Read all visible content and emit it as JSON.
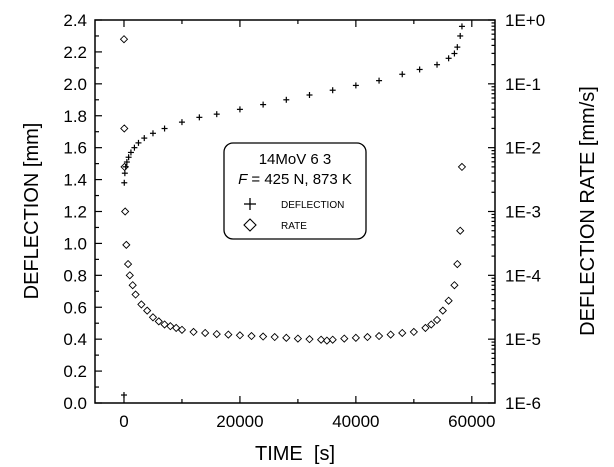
{
  "chart_data": {
    "type": "scatter",
    "xlabel": "TIME  [s]",
    "ylabel_left": "DEFLECTION [mm]",
    "ylabel_right": "DEFLECTION RATE [mm/s]",
    "xlim": [
      -5000,
      64000
    ],
    "ylim_left": [
      0.0,
      2.4
    ],
    "ylim_right": [
      1e-06,
      1
    ],
    "right_axis_scale": "log",
    "x_ticks": [
      "0",
      "20000",
      "40000",
      "60000"
    ],
    "y_ticks_left": [
      "0.0",
      "0.2",
      "0.4",
      "0.6",
      "0.8",
      "1.0",
      "1.2",
      "1.4",
      "1.6",
      "1.8",
      "2.0",
      "2.2",
      "2.4"
    ],
    "y_ticks_right": [
      "1E-6",
      "1E-5",
      "1E-4",
      "1E-3",
      "1E-2",
      "1E-1",
      "1E+0"
    ],
    "legend": {
      "title_line1": "14MoV 6 3",
      "title_line2_var": "F",
      "title_line2_rest": " = 425 N, 873 K",
      "placement": "center",
      "entries": [
        "DEFLECTION",
        "RATE"
      ]
    },
    "series": [
      {
        "name": "DEFLECTION",
        "marker": "+",
        "axis": "left",
        "x": [
          0,
          50,
          150,
          300,
          500,
          800,
          1200,
          1800,
          2500,
          3500,
          5000,
          7000,
          10000,
          13000,
          16000,
          20000,
          24000,
          28000,
          32000,
          36000,
          40000,
          44000,
          48000,
          51000,
          54000,
          56000,
          57000,
          57500,
          58000,
          58300
        ],
        "y": [
          0.05,
          1.38,
          1.44,
          1.48,
          1.51,
          1.54,
          1.57,
          1.6,
          1.63,
          1.66,
          1.69,
          1.72,
          1.76,
          1.79,
          1.81,
          1.84,
          1.87,
          1.9,
          1.93,
          1.96,
          1.99,
          2.02,
          2.06,
          2.09,
          2.12,
          2.16,
          2.19,
          2.23,
          2.3,
          2.36
        ]
      },
      {
        "name": "RATE",
        "marker": "diamond",
        "axis": "right",
        "x": [
          0,
          50,
          100,
          200,
          400,
          700,
          1000,
          1500,
          2000,
          3000,
          4000,
          5000,
          6000,
          7000,
          8000,
          9000,
          10000,
          12000,
          14000,
          16000,
          18000,
          20000,
          22000,
          24000,
          26000,
          28000,
          30000,
          32000,
          34000,
          35000,
          36000,
          38000,
          40000,
          42000,
          44000,
          46000,
          48000,
          50000,
          52000,
          53000,
          54000,
          55000,
          56000,
          57000,
          57500,
          58000,
          58300
        ],
        "y": [
          0.5,
          0.02,
          0.005,
          0.001,
          0.0003,
          0.00015,
          0.0001,
          7e-05,
          5e-05,
          3.5e-05,
          2.8e-05,
          2.2e-05,
          1.9e-05,
          1.7e-05,
          1.6e-05,
          1.5e-05,
          1.4e-05,
          1.3e-05,
          1.25e-05,
          1.2e-05,
          1.18e-05,
          1.15e-05,
          1.12e-05,
          1.1e-05,
          1.08e-05,
          1.05e-05,
          1.02e-05,
          1e-05,
          9.8e-06,
          9.5e-06,
          9.8e-06,
          1.02e-05,
          1.05e-05,
          1.08e-05,
          1.12e-05,
          1.18e-05,
          1.25e-05,
          1.3e-05,
          1.5e-05,
          1.7e-05,
          2e-05,
          2.8e-05,
          4e-05,
          7e-05,
          0.00015,
          0.0005,
          0.005
        ]
      }
    ]
  }
}
